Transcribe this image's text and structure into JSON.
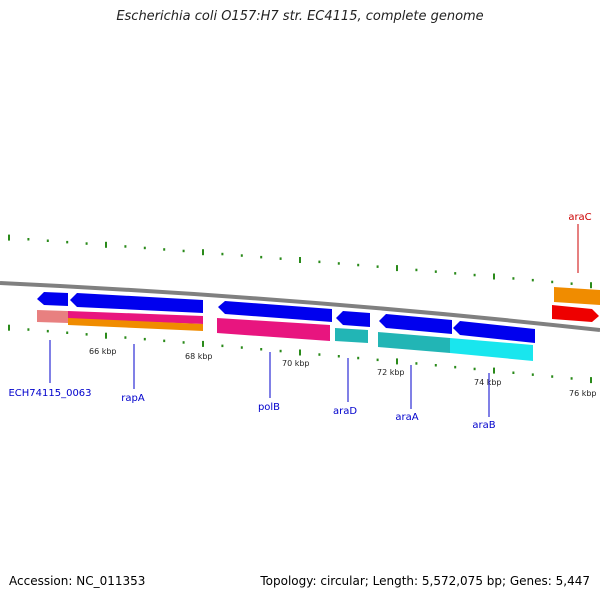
{
  "header": {
    "title": "Escherichia coli O157:H7 str. EC4115, complete genome"
  },
  "footer": {
    "accession": "Accession: NC_011353",
    "topology": "Topology: circular; Length: 5,572,075 bp; Genes: 5,447"
  },
  "scale": {
    "labels": [
      "66 kbp",
      "68 kbp",
      "70 kbp",
      "72 kbp",
      "74 kbp",
      "76 kbp"
    ]
  },
  "genes": [
    {
      "name": "ECH74115_0063",
      "label_color": "#0000cc"
    },
    {
      "name": "rapA",
      "label_color": "#0000cc"
    },
    {
      "name": "polB",
      "label_color": "#0000cc"
    },
    {
      "name": "araD",
      "label_color": "#0000cc"
    },
    {
      "name": "araA",
      "label_color": "#0000cc"
    },
    {
      "name": "araB",
      "label_color": "#0000cc"
    },
    {
      "name": "araC",
      "label_color": "#cc0000"
    }
  ],
  "colors": {
    "blue": "#0000ee",
    "pink": "#e8157f",
    "orange": "#f08c00",
    "salmon": "#e88080",
    "teal": "#22b5b5",
    "cyan": "#19e6ee",
    "red": "#ee0000",
    "backbone": "#808080",
    "tick": "#2a8a1a"
  }
}
